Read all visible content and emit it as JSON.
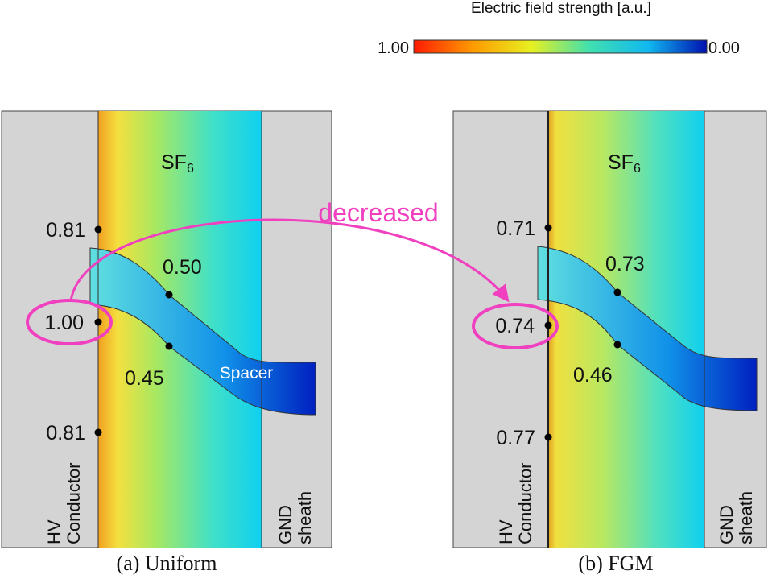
{
  "colorbar": {
    "title": "Electric field strength [a.u.]",
    "max_label": "1.00",
    "min_label": "0.00"
  },
  "annotation": "decreased",
  "panels": [
    {
      "caption": "(a) Uniform",
      "medium": "SF",
      "medium_sub": "6",
      "spacer": "Spacer",
      "conductor": [
        "HV",
        "Conductor"
      ],
      "sheath": [
        "GND",
        "sheath"
      ],
      "points": [
        "0.81",
        "0.50",
        "1.00",
        "0.45",
        "0.81"
      ]
    },
    {
      "caption": "(b) FGM",
      "medium": "SF",
      "medium_sub": "6",
      "conductor": [
        "HV",
        "Conductor"
      ],
      "sheath": [
        "GND",
        "sheath"
      ],
      "points": [
        "0.71",
        "0.73",
        "0.74",
        "0.46",
        "0.77"
      ]
    }
  ]
}
